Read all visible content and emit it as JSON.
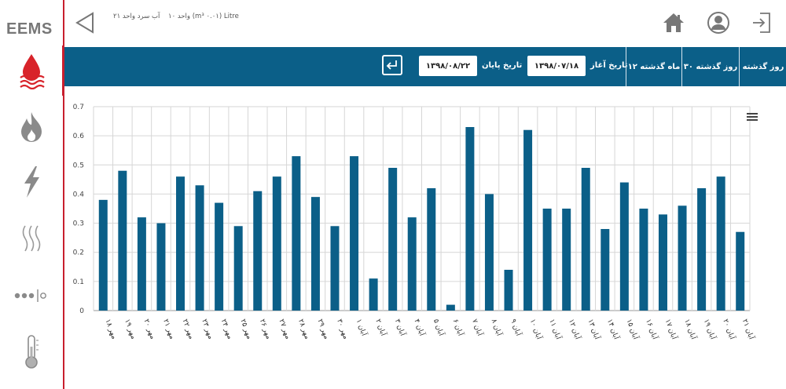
{
  "app": {
    "logo": "EEMS"
  },
  "sidebar": {
    "items": [
      {
        "name": "water",
        "icon": "water-drop-icon",
        "active": true
      },
      {
        "name": "gas",
        "icon": "flame-icon",
        "active": false
      },
      {
        "name": "electricity",
        "icon": "lightning-icon",
        "active": false
      },
      {
        "name": "heating",
        "icon": "heat-waves-icon",
        "active": false
      },
      {
        "name": "sensors",
        "icon": "sensor-dots-icon",
        "active": false
      },
      {
        "name": "temperature",
        "icon": "thermometer-icon",
        "active": false
      }
    ]
  },
  "header": {
    "unit_text": "واحد ۱۰ (m³ ۰.۰۱) Litre",
    "meter_name": "آب سرد واحد ۲۱",
    "icons": {
      "home": "home-icon",
      "profile": "user-icon",
      "logout": "logout-icon",
      "back": "back-triangle-icon"
    }
  },
  "toolbar": {
    "range_buttons": [
      "روز گذشته",
      "۳۰ روز گذشته",
      "۱۲ ماه گذشته"
    ],
    "start_label": "تاریخ آغاز",
    "start_value": "۱۳۹۸/۰۷/۱۸",
    "end_label": "تاریخ پایان",
    "end_value": "۱۳۹۸/۰۸/۲۲",
    "submit_icon": "enter-icon"
  },
  "chart_data": {
    "type": "bar",
    "categories": [
      "۱۸ مهر",
      "۱۹ مهر",
      "۲۰ مهر",
      "۲۱ مهر",
      "۲۲ مهر",
      "۲۳ مهر",
      "۲۴ مهر",
      "۲۵ مهر",
      "۲۶ مهر",
      "۲۷ مهر",
      "۲۸ مهر",
      "۲۹ مهر",
      "۳۰ مهر",
      "۱ آبان",
      "۲ آبان",
      "۳ آبان",
      "۴ آبان",
      "۵ آبان",
      "۶ آبان",
      "۷ آبان",
      "۸ آبان",
      "۹ آبان",
      "۱۰ آبان",
      "۱۱ آبان",
      "۱۲ آبان",
      "۱۳ آبان",
      "۱۴ آبان",
      "۱۵ آبان",
      "۱۶ آبان",
      "۱۷ آبان",
      "۱۸ آبان",
      "۱۹ آبان",
      "۲۰ آبان",
      "۲۱ آبان"
    ],
    "values": [
      0.38,
      0.48,
      0.32,
      0.3,
      0.46,
      0.43,
      0.37,
      0.29,
      0.41,
      0.46,
      0.53,
      0.39,
      0.29,
      0.53,
      0.11,
      0.49,
      0.32,
      0.42,
      0.02,
      0.63,
      0.4,
      0.14,
      0.62,
      0.35,
      0.35,
      0.49,
      0.28,
      0.44,
      0.35,
      0.33,
      0.36,
      0.42,
      0.46,
      0.27
    ],
    "ylim": [
      0,
      0.7
    ],
    "yticks": [
      0,
      0.1,
      0.2,
      0.3,
      0.4,
      0.5,
      0.6,
      0.7
    ],
    "ytick_labels": [
      "0",
      "0.1",
      "0.2",
      "0.3",
      "0.4",
      "0.5",
      "0.6",
      "0.7"
    ],
    "grid": true,
    "bar_color": "#0b5f88",
    "menu_icon": "chart-menu-icon"
  }
}
